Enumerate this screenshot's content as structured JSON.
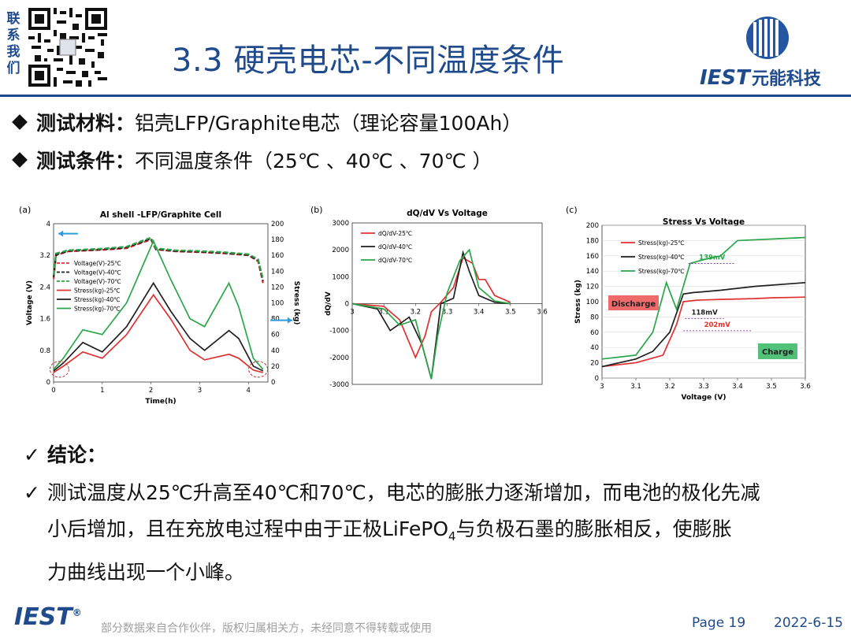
{
  "header": {
    "contact_chars": [
      "联",
      "系",
      "我",
      "们"
    ],
    "title": "3.3 硬壳电芯-不同温度条件",
    "logo_text": "IEST",
    "logo_cn": "元能科技",
    "brand_color": "#1f4a8c"
  },
  "bullets": [
    {
      "label": "测试材料：",
      "text": "铝壳LFP/Graphite电芯（理论容量100Ah）"
    },
    {
      "label": "测试条件：",
      "text": "不同温度条件（25℃ 、40℃ 、70℃ ）"
    }
  ],
  "chart_data": [
    {
      "panel": "(a)",
      "type": "line",
      "title": "Al shell -LFP/Graphite Cell",
      "xlabel": "Time(h)",
      "ylabel": "Voltage (V)",
      "y2label": "Stress (kg)",
      "xlim": [
        0,
        4.4
      ],
      "ylim": [
        0,
        4
      ],
      "y2lim": [
        0,
        200
      ],
      "xticks": [
        "0",
        "1",
        "2",
        "3",
        "4"
      ],
      "yticks": [
        "0",
        "0.8",
        "1.6",
        "2.4",
        "3.2",
        "4"
      ],
      "y2ticks": [
        "0",
        "20",
        "40",
        "60",
        "80",
        "100",
        "120",
        "140",
        "160",
        "180",
        "200"
      ],
      "legend": [
        "Voltage(V)-25℃",
        "Voltage(V)-40℃",
        "Voltage(V)-70℃",
        "Stress(kg)-25℃",
        "Stress(kg)-40℃",
        "Stress(kg)-70℃"
      ],
      "series": [
        {
          "name": "Voltage(V)-25℃",
          "color": "#e03030",
          "dashed": true,
          "axis": "y",
          "x": [
            0,
            0.05,
            0.3,
            1,
            1.5,
            2.0,
            2.1,
            2.5,
            3,
            3.5,
            4.0,
            4.2,
            4.3
          ],
          "y": [
            2.6,
            3.2,
            3.3,
            3.34,
            3.38,
            3.6,
            3.35,
            3.3,
            3.28,
            3.25,
            3.2,
            3.05,
            2.5
          ]
        },
        {
          "name": "Voltage(V)-40℃",
          "color": "#202020",
          "dashed": true,
          "axis": "y",
          "x": [
            0,
            0.05,
            0.3,
            1,
            1.5,
            2.0,
            2.1,
            2.5,
            3,
            3.5,
            4.0,
            4.2,
            4.3
          ],
          "y": [
            2.65,
            3.22,
            3.31,
            3.35,
            3.4,
            3.62,
            3.36,
            3.31,
            3.29,
            3.26,
            3.21,
            3.07,
            2.55
          ]
        },
        {
          "name": "Voltage(V)-70℃",
          "color": "#2aa64a",
          "dashed": true,
          "axis": "y",
          "x": [
            0,
            0.05,
            0.3,
            1,
            1.5,
            2.0,
            2.1,
            2.5,
            3,
            3.5,
            4.0,
            4.2,
            4.3
          ],
          "y": [
            2.7,
            3.25,
            3.33,
            3.37,
            3.42,
            3.65,
            3.38,
            3.33,
            3.31,
            3.28,
            3.23,
            3.1,
            2.6
          ]
        },
        {
          "name": "Stress(kg)-25℃",
          "color": "#e03030",
          "dashed": false,
          "axis": "y2",
          "x": [
            0,
            0.2,
            0.6,
            1.0,
            1.5,
            2.05,
            2.4,
            2.8,
            3.1,
            3.6,
            3.8,
            4.1,
            4.3
          ],
          "y": [
            12,
            20,
            38,
            30,
            60,
            110,
            80,
            40,
            28,
            35,
            30,
            15,
            12
          ]
        },
        {
          "name": "Stress(kg)-40℃",
          "color": "#202020",
          "dashed": false,
          "axis": "y2",
          "x": [
            0,
            0.2,
            0.6,
            1.0,
            1.5,
            2.05,
            2.4,
            2.8,
            3.1,
            3.6,
            3.8,
            4.1,
            4.3
          ],
          "y": [
            14,
            24,
            50,
            38,
            70,
            125,
            90,
            55,
            40,
            65,
            55,
            20,
            14
          ]
        },
        {
          "name": "Stress(kg)-70℃",
          "color": "#2aa64a",
          "dashed": false,
          "axis": "y2",
          "x": [
            0,
            0.2,
            0.6,
            1.0,
            1.5,
            2.05,
            2.4,
            2.8,
            3.1,
            3.6,
            3.8,
            4.1,
            4.3
          ],
          "y": [
            16,
            30,
            66,
            60,
            100,
            178,
            130,
            80,
            70,
            125,
            95,
            30,
            16
          ]
        }
      ]
    },
    {
      "panel": "(b)",
      "type": "line",
      "title": "dQ/dV  Vs  Voltage",
      "xlabel": "Voltage (V)",
      "ylabel": "dQ/dV",
      "xlim": [
        3,
        3.6
      ],
      "ylim": [
        -3000,
        3000
      ],
      "xticks": [
        "3",
        "3.1",
        "3.2",
        "3.3",
        "3.4",
        "3.5",
        "3.6"
      ],
      "yticks": [
        "-3000",
        "-2000",
        "-1000",
        "0",
        "1000",
        "2000",
        "3000"
      ],
      "legend": [
        "dQ/dV-25℃",
        "dQ/dV-40℃",
        "dQ/dV-70℃"
      ],
      "series": [
        {
          "name": "dQ/dV-25℃",
          "color": "#e03030",
          "x": [
            3.0,
            3.1,
            3.15,
            3.2,
            3.23,
            3.25,
            3.28,
            3.32,
            3.35,
            3.38,
            3.4,
            3.42,
            3.45,
            3.5
          ],
          "y": [
            0,
            -100,
            -600,
            -2000,
            -1200,
            -300,
            50,
            600,
            1700,
            1500,
            900,
            900,
            300,
            50
          ]
        },
        {
          "name": "dQ/dV-40℃",
          "color": "#202020",
          "x": [
            3.0,
            3.08,
            3.12,
            3.18,
            3.22,
            3.25,
            3.28,
            3.32,
            3.35,
            3.37,
            3.4,
            3.45,
            3.5
          ],
          "y": [
            0,
            -200,
            -1000,
            -500,
            -1500,
            -2800,
            0,
            200,
            1900,
            1200,
            300,
            50,
            0
          ]
        },
        {
          "name": "dQ/dV-70℃",
          "color": "#2aa64a",
          "x": [
            3.0,
            3.05,
            3.1,
            3.15,
            3.2,
            3.25,
            3.27,
            3.3,
            3.34,
            3.37,
            3.4,
            3.45,
            3.5
          ],
          "y": [
            0,
            -100,
            -200,
            -800,
            -600,
            -2800,
            -1200,
            400,
            1600,
            2000,
            600,
            100,
            0
          ]
        }
      ]
    },
    {
      "panel": "(c)",
      "type": "line",
      "title": "Stress Vs Voltage",
      "xlabel": "Voltage (V)",
      "ylabel": "Stress (kg)",
      "xlim": [
        3,
        3.6
      ],
      "ylim": [
        0,
        200
      ],
      "xticks": [
        "3",
        "3.1",
        "3.2",
        "3.3",
        "3.4",
        "3.5",
        "3.6"
      ],
      "yticks": [
        "0",
        "20",
        "40",
        "60",
        "80",
        "100",
        "120",
        "140",
        "160",
        "180",
        "200"
      ],
      "legend": [
        "Stress(kg)-25℃",
        "Stress(kg)-40℃",
        "Stress(kg)-70℃"
      ],
      "annotations": {
        "a1": "139mV",
        "a2": "118mV",
        "a3": "202mV",
        "discharge": "Discharge",
        "charge": "Charge"
      },
      "series": [
        {
          "name": "Stress(kg)-25℃",
          "color": "#e03030",
          "x": [
            3.0,
            3.1,
            3.18,
            3.22,
            3.24,
            3.28,
            3.35,
            3.45,
            3.5,
            3.6
          ],
          "y": [
            15,
            20,
            30,
            70,
            100,
            102,
            103,
            104,
            105,
            106
          ]
        },
        {
          "name": "Stress(kg)-40℃",
          "color": "#202020",
          "x": [
            3.0,
            3.1,
            3.15,
            3.2,
            3.24,
            3.27,
            3.3,
            3.35,
            3.45,
            3.6
          ],
          "y": [
            15,
            25,
            35,
            60,
            110,
            112,
            113,
            115,
            120,
            125
          ]
        },
        {
          "name": "Stress(kg)-70℃",
          "color": "#2aa64a",
          "x": [
            3.0,
            3.1,
            3.15,
            3.19,
            3.22,
            3.26,
            3.3,
            3.35,
            3.4,
            3.5,
            3.6
          ],
          "y": [
            25,
            30,
            60,
            125,
            90,
            150,
            155,
            160,
            180,
            182,
            184
          ]
        }
      ]
    }
  ],
  "conclusion": {
    "heading": "结论：",
    "check_char": "✓",
    "line1": "测试温度从25℃升高至40℃和70℃，电芯的膨胀力逐渐增加，而电池的极化先减",
    "line2_a": "小后增加，且在充放电过程中由于正极LiFePO",
    "line2_sub": "4",
    "line2_b": "与负极石墨的膨胀相反，使膨胀",
    "line3": "力曲线出现一个小峰。"
  },
  "footer": {
    "logo": "IEST",
    "registered": "®",
    "note": "部分数据来自合作伙伴，版权归属相关方，未经同意不得转载或使用",
    "page": "Page 19",
    "date": "2022-6-15"
  }
}
